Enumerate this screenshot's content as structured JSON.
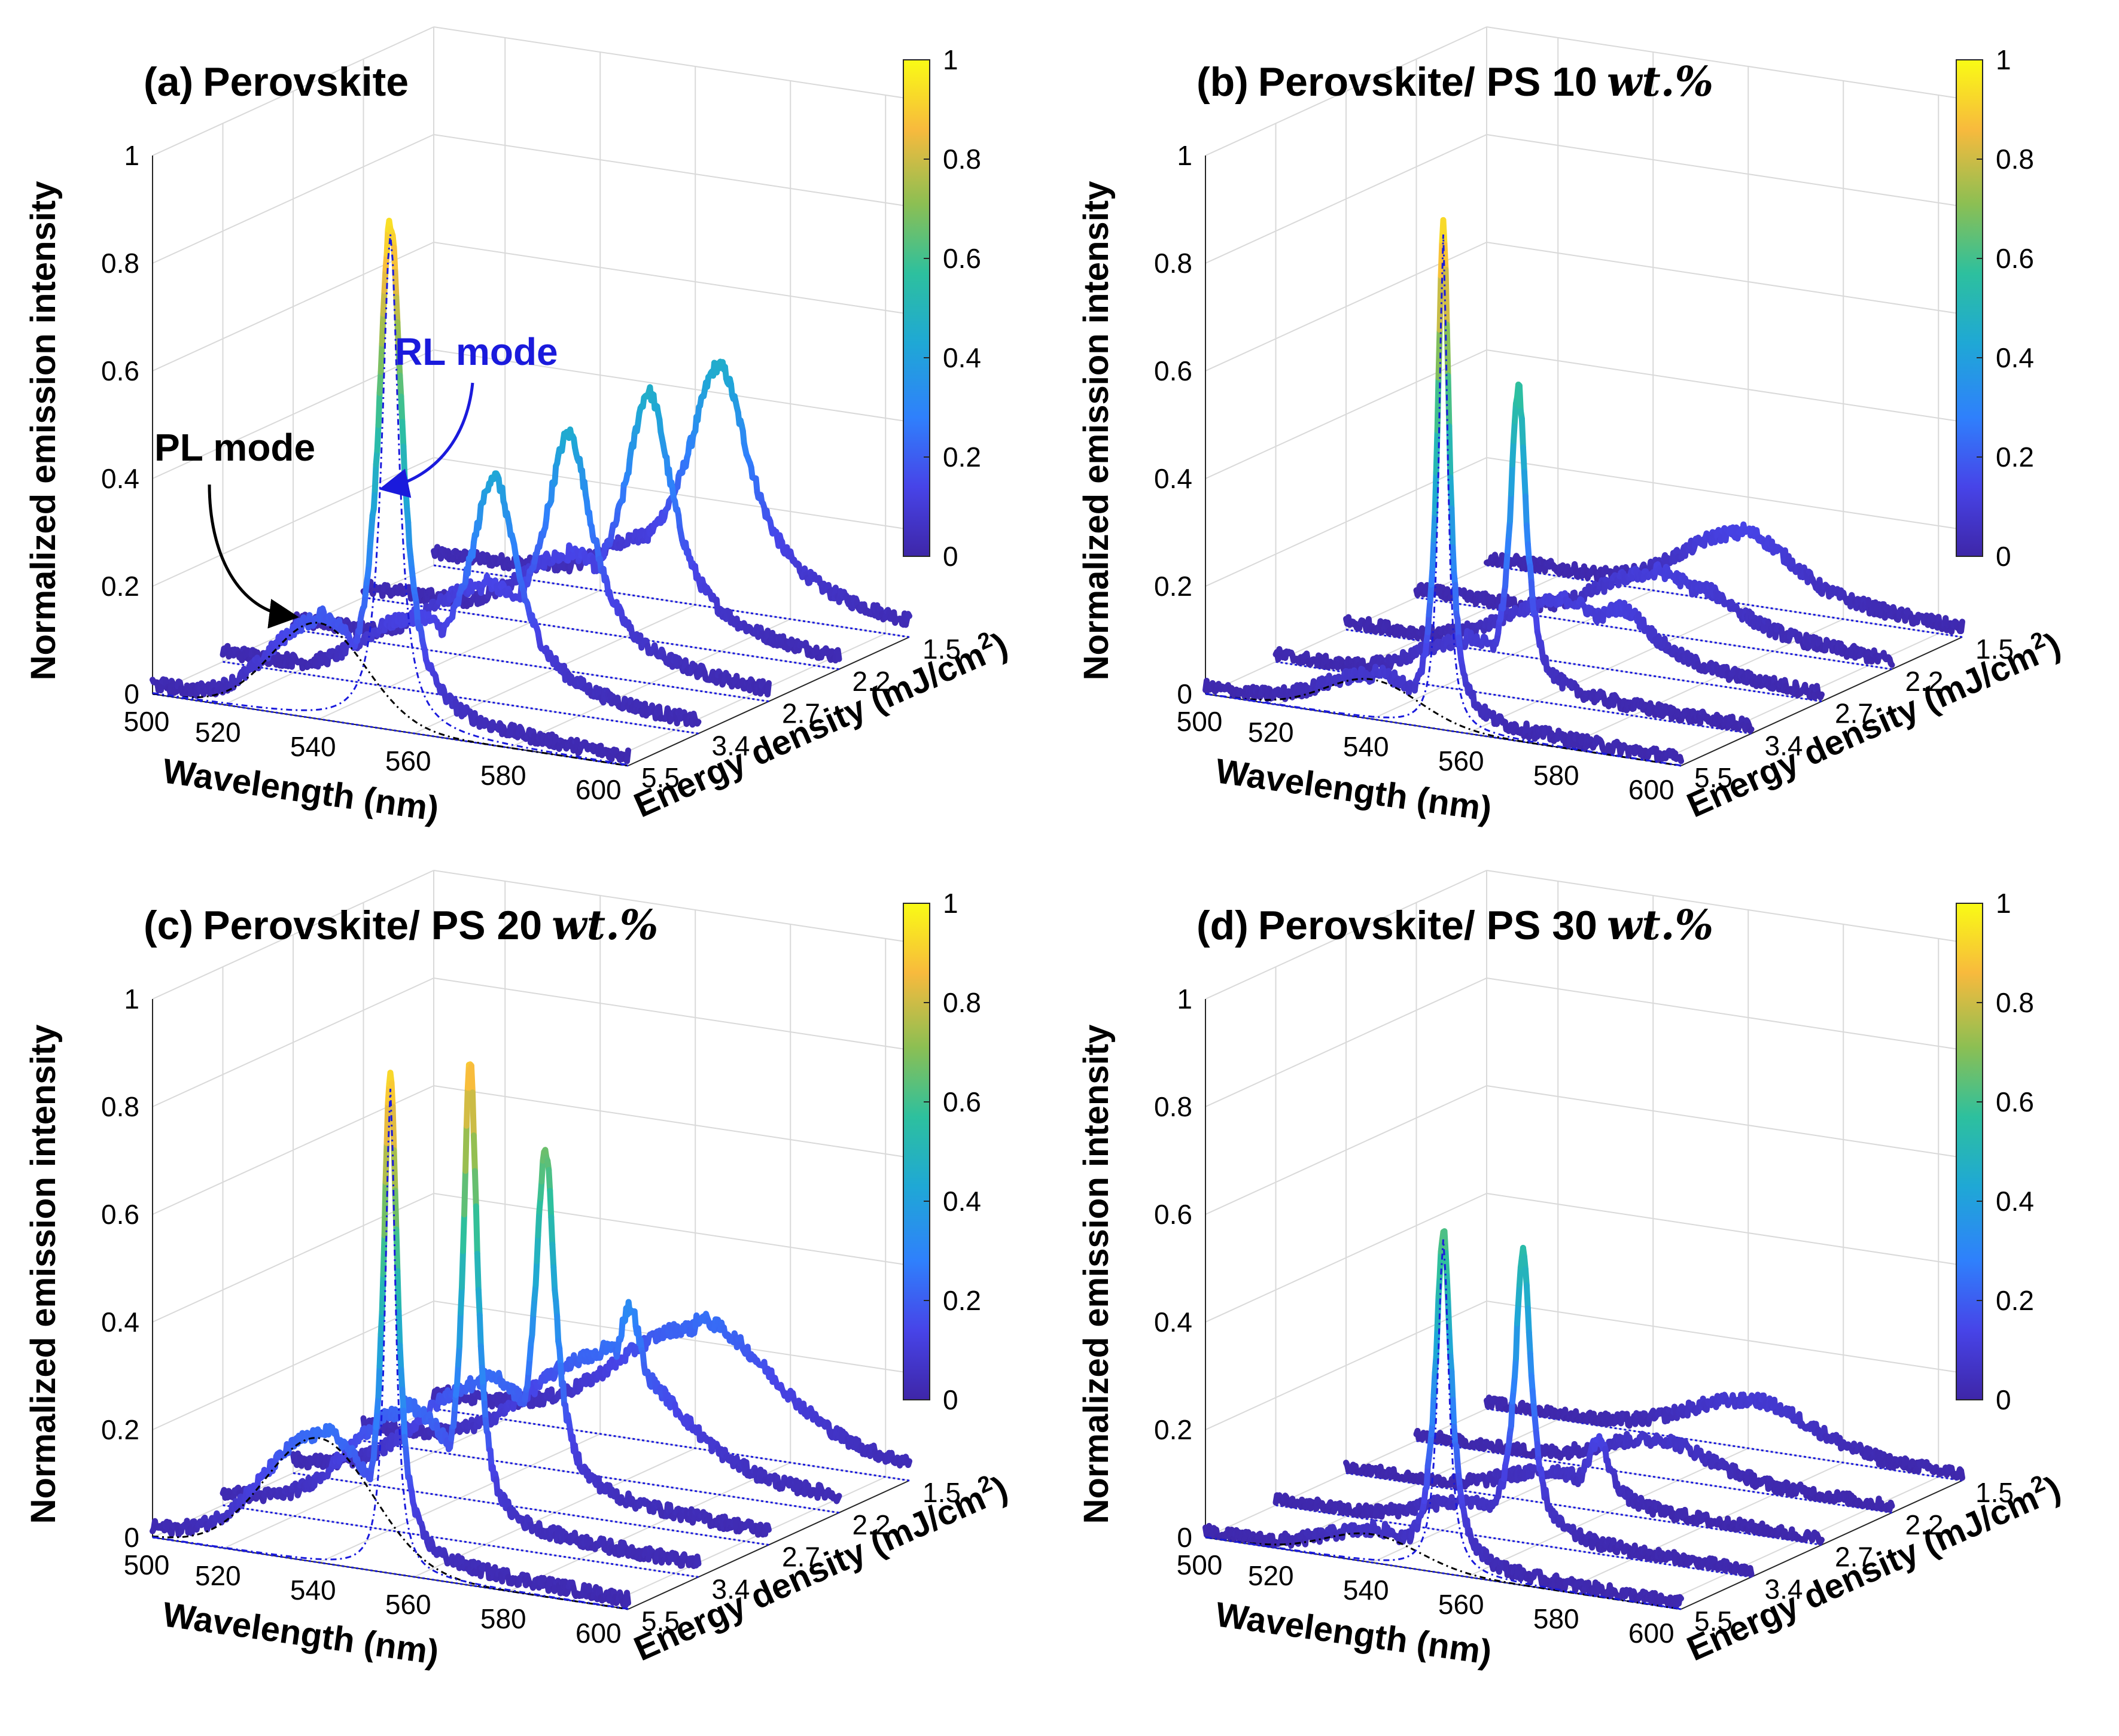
{
  "colors": {
    "grid": "#d9d9d9",
    "axis": "#262626",
    "rl_annotation": "#1a1adc",
    "pl_annotation": "#000000",
    "fit_pl": "#000000",
    "fit_rl": "#1a1adc",
    "colormap": [
      "#3e26a8",
      "#4744e8",
      "#2f80fc",
      "#1fa8d5",
      "#2dc09e",
      "#8cbf53",
      "#f8ba3d",
      "#f9fb15"
    ]
  },
  "chart_data": [
    {
      "id": "a",
      "type": "line",
      "panel_label": "(a)",
      "title": "Perovskite",
      "title_suffix": "",
      "xlabel": "Wavelength (nm)",
      "ylabel": "Normalized emission intensity",
      "zlabel": "Energy density (mJ/cm",
      "zlabel_sup": "2",
      "zlabel_close": ")",
      "x_range": [
        505,
        605
      ],
      "z_range": [
        0,
        1
      ],
      "x_ticks": [
        "500",
        "520",
        "540",
        "560",
        "580",
        "600"
      ],
      "y_ticks": [
        "5.5",
        "3.4",
        "2.7",
        "2.2",
        "1.5"
      ],
      "z_ticks": [
        "0",
        "0.2",
        "0.4",
        "0.6",
        "0.8",
        "1"
      ],
      "colorbar_ticks": [
        "0",
        "0.2",
        "0.4",
        "0.6",
        "0.8",
        "1"
      ],
      "annotations": [
        {
          "text": "RL mode",
          "color": "rl_annotation"
        },
        {
          "text": "PL mode",
          "color": "pl_annotation"
        }
      ],
      "series": [
        {
          "energy_density": "5.5",
          "peak_nm": 555,
          "peak": 0.92,
          "width": 3,
          "shoulder": 0.17,
          "shoulder_nm": 540,
          "shoulder_width": 14,
          "tail": 0.05
        },
        {
          "energy_density": "3.4",
          "peak_nm": 562,
          "peak": 0.4,
          "width": 6,
          "shoulder": 0.12,
          "shoulder_nm": 545,
          "shoulder_width": 14,
          "tail": 0.05
        },
        {
          "energy_density": "2.7",
          "peak_nm": 563,
          "peak": 0.42,
          "width": 6,
          "shoulder": 0.12,
          "shoulder_nm": 545,
          "shoulder_width": 14,
          "tail": 0.05
        },
        {
          "energy_density": "2.2",
          "peak_nm": 565,
          "peak": 0.44,
          "width": 6,
          "shoulder": 0.12,
          "shoulder_nm": 548,
          "shoulder_width": 14,
          "tail": 0.05
        },
        {
          "energy_density": "1.5",
          "peak_nm": 565,
          "peak": 0.43,
          "width": 8,
          "shoulder": 0.1,
          "shoulder_nm": 550,
          "shoulder_width": 14,
          "tail": 0.05
        }
      ]
    },
    {
      "id": "b",
      "type": "line",
      "panel_label": "(b)",
      "title": "Perovskite/ PS 10",
      "title_suffix": "wt.%",
      "xlabel": "Wavelength (nm)",
      "ylabel": "Normalized emission intensity",
      "zlabel": "Energy density (mJ/cm",
      "zlabel_sup": "2",
      "zlabel_close": ")",
      "x_range": [
        505,
        605
      ],
      "z_range": [
        0,
        1
      ],
      "x_ticks": [
        "500",
        "520",
        "540",
        "560",
        "580",
        "600"
      ],
      "y_ticks": [
        "5.5",
        "3.4",
        "2.7",
        "2.2",
        "1.5"
      ],
      "z_ticks": [
        "0",
        "0.2",
        "0.4",
        "0.6",
        "0.8",
        "1"
      ],
      "colorbar_ticks": [
        "0",
        "0.2",
        "0.4",
        "0.6",
        "0.8",
        "1"
      ],
      "annotations": [],
      "series": [
        {
          "energy_density": "5.5",
          "peak_nm": 555,
          "peak": 0.92,
          "width": 1.5,
          "shoulder": 0.07,
          "shoulder_nm": 540,
          "shoulder_width": 14,
          "tail": 0.04
        },
        {
          "energy_density": "3.4",
          "peak_nm": 556,
          "peak": 0.56,
          "width": 2,
          "shoulder": 0.08,
          "shoulder_nm": 545,
          "shoulder_width": 14,
          "tail": 0.04
        },
        {
          "energy_density": "2.7",
          "peak_nm": 563,
          "peak": 0.1,
          "width": 8,
          "shoulder": 0.1,
          "shoulder_nm": 550,
          "shoulder_width": 16,
          "tail": 0.04
        },
        {
          "energy_density": "2.2",
          "peak_nm": 565,
          "peak": 0.08,
          "width": 10,
          "shoulder": 0.1,
          "shoulder_nm": 555,
          "shoulder_width": 16,
          "tail": 0.04
        },
        {
          "energy_density": "1.5",
          "peak_nm": 568,
          "peak": 0.05,
          "width": 12,
          "shoulder": 0.12,
          "shoulder_nm": 558,
          "shoulder_width": 16,
          "tail": 0.04
        }
      ]
    },
    {
      "id": "c",
      "type": "line",
      "panel_label": "(c)",
      "title": "Perovskite/ PS 20",
      "title_suffix": "wt.%",
      "xlabel": "Wavelength (nm)",
      "ylabel": "Normalized emission intensity",
      "zlabel": "Energy density (mJ/cm",
      "zlabel_sup": "2",
      "zlabel_close": ")",
      "x_range": [
        505,
        605
      ],
      "z_range": [
        0,
        1
      ],
      "x_ticks": [
        "500",
        "520",
        "540",
        "560",
        "580",
        "600"
      ],
      "y_ticks": [
        "5.5",
        "3.4",
        "2.7",
        "2.2",
        "1.5"
      ],
      "z_ticks": [
        "0",
        "0.2",
        "0.4",
        "0.6",
        "0.8",
        "1"
      ],
      "colorbar_ticks": [
        "0",
        "0.2",
        "0.4",
        "0.6",
        "0.8",
        "1"
      ],
      "annotations": [],
      "series": [
        {
          "energy_density": "5.5",
          "peak_nm": 555,
          "peak": 0.9,
          "width": 1.8,
          "shoulder": 0.22,
          "shoulder_nm": 540,
          "shoulder_width": 16,
          "tail": 0.06
        },
        {
          "energy_density": "3.4",
          "peak_nm": 557,
          "peak": 0.86,
          "width": 1.8,
          "shoulder": 0.2,
          "shoulder_nm": 543,
          "shoulder_width": 16,
          "tail": 0.08
        },
        {
          "energy_density": "2.7",
          "peak_nm": 558,
          "peak": 0.64,
          "width": 2.5,
          "shoulder": 0.2,
          "shoulder_nm": 545,
          "shoulder_width": 18,
          "tail": 0.08
        },
        {
          "energy_density": "2.2",
          "peak_nm": 561,
          "peak": 0.28,
          "width": 4,
          "shoulder": 0.2,
          "shoulder_nm": 555,
          "shoulder_width": 20,
          "tail": 0.1
        },
        {
          "energy_density": "1.5",
          "peak_nm": 565,
          "peak": 0.08,
          "width": 10,
          "shoulder": 0.2,
          "shoulder_nm": 560,
          "shoulder_width": 22,
          "tail": 0.1
        }
      ]
    },
    {
      "id": "d",
      "type": "line",
      "panel_label": "(d)",
      "title": "Perovskite/ PS 30",
      "title_suffix": "wt.%",
      "xlabel": "Wavelength (nm)",
      "ylabel": "Normalized emission intensity",
      "zlabel": "Energy density (mJ/cm",
      "zlabel_sup": "2",
      "zlabel_close": ")",
      "x_range": [
        505,
        605
      ],
      "z_range": [
        0,
        1
      ],
      "x_ticks": [
        "500",
        "520",
        "540",
        "560",
        "580",
        "600"
      ],
      "y_ticks": [
        "5.5",
        "3.4",
        "2.7",
        "2.2",
        "1.5"
      ],
      "z_ticks": [
        "0",
        "0.2",
        "0.4",
        "0.6",
        "0.8",
        "1"
      ],
      "colorbar_ticks": [
        "0",
        "0.2",
        "0.4",
        "0.6",
        "0.8",
        "1"
      ],
      "annotations": [],
      "series": [
        {
          "energy_density": "5.5",
          "peak_nm": 555,
          "peak": 0.62,
          "width": 2,
          "shoulder": 0.05,
          "shoulder_nm": 540,
          "shoulder_width": 14,
          "tail": 0.03
        },
        {
          "energy_density": "3.4",
          "peak_nm": 557,
          "peak": 0.53,
          "width": 2,
          "shoulder": 0.05,
          "shoulder_nm": 545,
          "shoulder_width": 14,
          "tail": 0.03
        },
        {
          "energy_density": "2.7",
          "peak_nm": 558,
          "peak": 0.12,
          "width": 3,
          "shoulder": 0.05,
          "shoulder_nm": 548,
          "shoulder_width": 14,
          "tail": 0.03
        },
        {
          "energy_density": "2.2",
          "peak_nm": 565,
          "peak": 0.02,
          "width": 10,
          "shoulder": 0.06,
          "shoulder_nm": 555,
          "shoulder_width": 16,
          "tail": 0.03
        },
        {
          "energy_density": "1.5",
          "peak_nm": 568,
          "peak": 0.02,
          "width": 12,
          "shoulder": 0.08,
          "shoulder_nm": 560,
          "shoulder_width": 18,
          "tail": 0.03
        }
      ]
    }
  ]
}
